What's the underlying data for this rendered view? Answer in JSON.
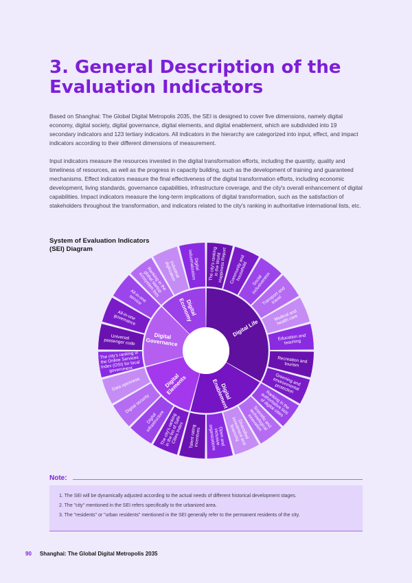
{
  "page": {
    "title": "3. General Description of the Evaluation Indicators",
    "paragraphs": [
      "Based on Shanghai: The Global Digital Metropolis 2035, the SEI is designed to cover five dimensions, namely digital economy, digital society, digital governance, digital elements, and digital enablement, which are subdivided into 19 secondary indicators and 123 tertiary indicators. All indicators in the hierarchy are categorized into input, effect, and impact indicators according to their different dimensions of measurement.",
      "Input indicators measure the resources invested in the digital transformation efforts, including the quantity, quality and timeliness of resources, as well as the progress in capacity building, such as the development of training and guaranteed mechanisms. Effect indicators measure the final effectiveness of the digital transformation efforts, including economic development, living standards, governance capabilities, infrastructure coverage, and the city's overall enhancement of digital capabilities. Impact indicators measure the long-term implications of digital transformation, such as the satisfaction of stakeholders throughout the transformation, and indicators related to the city's ranking in authoritative international lists, etc."
    ]
  },
  "diagram": {
    "caption": "System of Evaluation Indicators (SEI) Diagram",
    "dimensions": [
      {
        "name": "Digital Economy",
        "lines": [
          "Digital",
          "Economy"
        ],
        "color": "#9b3fe8"
      },
      {
        "name": "Digital Life",
        "lines": [
          "Digital Life"
        ],
        "color": "#5f109e"
      },
      {
        "name": "Digital Enablement",
        "lines": [
          "Digital",
          "Enablement"
        ],
        "color": "#7514c2"
      },
      {
        "name": "Digital Elements",
        "lines": [
          "Digital",
          "Elements"
        ],
        "color": "#a438ec"
      },
      {
        "name": "Digital Governance",
        "lines": [
          "Digital",
          "Governance"
        ],
        "color": "#b55ff0"
      }
    ],
    "indicators": [
      {
        "label": "Digital industrialization",
        "lines": [
          "Digital",
          "industrialization"
        ],
        "dim": 0
      },
      {
        "label": "The city's ranking in the World Happiness Report",
        "lines": [
          "The city's ranking",
          "in the World",
          "Happiness Report"
        ],
        "dim": 1
      },
      {
        "label": "Community and household",
        "lines": [
          "Community and",
          "household"
        ],
        "dim": 1
      },
      {
        "label": "Social inclusiveness",
        "lines": [
          "Social",
          "inclusiveness"
        ],
        "dim": 1
      },
      {
        "label": "Transport and travel",
        "lines": [
          "Transport and",
          "travel"
        ],
        "dim": 1
      },
      {
        "label": "Medical and health care",
        "lines": [
          "Medical and",
          "health care"
        ],
        "dim": 1
      },
      {
        "label": "Education and teaching",
        "lines": [
          "Education and",
          "teaching"
        ],
        "dim": 1
      },
      {
        "label": "Recreation and tourism",
        "lines": [
          "Recreation and",
          "tourism"
        ],
        "dim": 1
      },
      {
        "label": "Greening and environmental protection",
        "lines": [
          "Greening and",
          "environmental",
          "protection"
        ],
        "dim": 1
      },
      {
        "label": "Ranking in the authoritative lists of digital cities",
        "lines": [
          "Ranking in the",
          "authoritative lists",
          "of digital cities"
        ],
        "dim": 2
      },
      {
        "label": "Scientific and technological innovation",
        "lines": [
          "Scientific and",
          "technological",
          "innovation"
        ],
        "dim": 2
      },
      {
        "label": "Diversified investment and financing",
        "lines": [
          "Diversified",
          "investment and",
          "financing"
        ],
        "dim": 2
      },
      {
        "label": "Open and inclusive organizations",
        "lines": [
          "Open and",
          "inclusive",
          "organizations"
        ],
        "dim": 2
      },
      {
        "label": "Talent rating incentives",
        "lines": [
          "Talent rating",
          "incentives"
        ],
        "dim": 2
      },
      {
        "label": "The city's ranking in the list of Safe Cities Index",
        "lines": [
          "The city's ranking",
          "in the list of Safe",
          "Cities Index"
        ],
        "dim": 3
      },
      {
        "label": "Digital infrastructure",
        "lines": [
          "Digital",
          "infrastructure"
        ],
        "dim": 3
      },
      {
        "label": "Digital security",
        "lines": [
          "Digital security"
        ],
        "dim": 3
      },
      {
        "label": "Data openness",
        "lines": [
          "Data openness"
        ],
        "dim": 3
      },
      {
        "label": "The city's ranking in the Online Services Index (OSI) for local government",
        "lines": [
          "The city's ranking in",
          "the Online Services",
          "Index (OSI) for local",
          "government"
        ],
        "dim": 4
      },
      {
        "label": "Universal passenger code",
        "lines": [
          "Universal",
          "passenger code"
        ],
        "dim": 4
      },
      {
        "label": "All-in-one governance",
        "lines": [
          "All-in-one",
          "governance"
        ],
        "dim": 4
      },
      {
        "label": "All-in-one service",
        "lines": [
          "All-in-one",
          "service"
        ],
        "dim": 4
      },
      {
        "label": "Ranking in the global startup ecosystem lists",
        "lines": [
          "Ranking in the",
          "global startup",
          "ecosystem lists"
        ],
        "dim": 0
      },
      {
        "label": "Industrial digitization",
        "lines": [
          "Industrial",
          "digitization"
        ],
        "dim": 0
      }
    ],
    "outer_colors": [
      "#8a2be2",
      "#6a12b0",
      "#7a1bc8",
      "#9c45ea",
      "#b56cf2",
      "#c58cf5"
    ]
  },
  "note": {
    "heading": "Note:",
    "items": [
      "1. The SEI will be dynamically adjusted according to the actual needs of different historical development stages.",
      "2. The \"city\" mentioned in the SEI refers specifically to the urbanized area.",
      "3. The \"residents\" or \"urban residents\" mentioned in the SEI generally refer to the permanent residents of the city."
    ]
  },
  "footer": {
    "page_number": "90",
    "publication": "Shanghai: The Global Digital Metropolis 2035"
  }
}
